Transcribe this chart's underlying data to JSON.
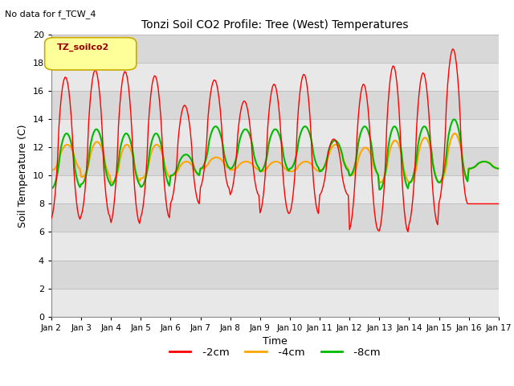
{
  "title": "Tonzi Soil CO2 Profile: Tree (West) Temperatures",
  "subtitle": "No data for f_TCW_4",
  "ylabel": "Soil Temperature (C)",
  "xlabel": "Time",
  "legend_label": "TZ_soilco2",
  "ylim": [
    0,
    20
  ],
  "xlim": [
    0,
    15
  ],
  "xtick_labels": [
    "Jan 2",
    "Jan 3",
    "Jan 4",
    "Jan 5",
    "Jan 6",
    "Jan 7",
    "Jan 8",
    "Jan 9",
    "Jan 10",
    "Jan 11",
    "Jan 12",
    "Jan 13",
    "Jan 14",
    "Jan 15",
    "Jan 16",
    "Jan 17"
  ],
  "xtick_positions": [
    0,
    1,
    2,
    3,
    4,
    5,
    6,
    7,
    8,
    9,
    10,
    11,
    12,
    13,
    14,
    15
  ],
  "ytick_labels": [
    "0",
    "2",
    "4",
    "6",
    "8",
    "10",
    "12",
    "14",
    "16",
    "18",
    "20"
  ],
  "ytick_positions": [
    0,
    2,
    4,
    6,
    8,
    10,
    12,
    14,
    16,
    18,
    20
  ],
  "line_2cm_color": "#FF0000",
  "line_4cm_color": "#FFA500",
  "line_8cm_color": "#00BB00",
  "plot_bg_color": "#E8E8E8",
  "band_color_dark": "#D8D8D8",
  "band_color_light": "#E8E8E8",
  "legend_box_facecolor": "#FFFF99",
  "legend_box_edgecolor": "#CCAA00",
  "legend_text_color": "#990000",
  "red_peak_by_day": [
    17.0,
    17.5,
    17.4,
    17.1,
    15.0,
    16.8,
    15.3,
    16.5,
    17.2,
    12.6,
    16.5,
    17.8,
    17.3,
    19.0,
    8.0
  ],
  "red_trough_by_day": [
    6.9,
    7.1,
    6.6,
    7.0,
    8.0,
    9.1,
    8.6,
    7.3,
    7.3,
    8.6,
    6.1,
    6.0,
    6.5,
    8.0,
    8.0
  ],
  "orange_peak_by_day": [
    12.2,
    12.4,
    12.2,
    12.2,
    11.0,
    11.3,
    11.0,
    11.0,
    11.0,
    12.2,
    12.0,
    12.5,
    12.7,
    13.0,
    11.0
  ],
  "orange_trough_by_day": [
    10.4,
    9.9,
    9.5,
    9.8,
    10.0,
    10.5,
    10.4,
    10.3,
    10.3,
    10.4,
    10.0,
    9.5,
    9.5,
    9.5,
    10.5
  ],
  "green_peak_by_day": [
    13.0,
    13.3,
    13.0,
    13.0,
    11.5,
    13.5,
    13.3,
    13.3,
    13.5,
    12.5,
    13.5,
    13.5,
    13.5,
    14.0,
    11.0
  ],
  "green_trough_by_day": [
    9.1,
    9.4,
    9.3,
    9.2,
    10.0,
    10.5,
    10.5,
    10.3,
    10.5,
    10.3,
    10.0,
    9.0,
    9.5,
    9.5,
    10.5
  ],
  "red_peak_phase": 0.6,
  "red_trough_phase": 0.22,
  "orange_peak_phase": 0.56,
  "orange_trough_phase": 0.28,
  "green_peak_phase": 0.54,
  "green_trough_phase": 0.26
}
